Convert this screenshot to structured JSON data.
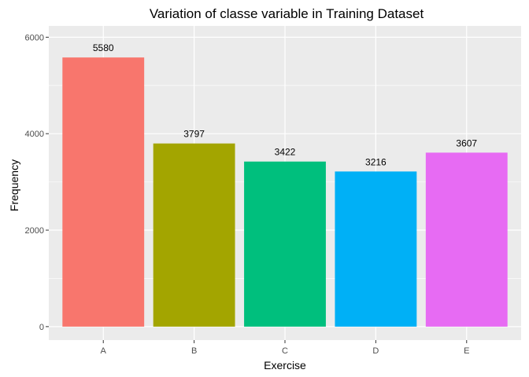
{
  "chart_data": {
    "type": "bar",
    "title": "Variation of classe variable in Training Dataset",
    "xlabel": "Exercise",
    "ylabel": "Frequency",
    "categories": [
      "A",
      "B",
      "C",
      "D",
      "E"
    ],
    "values": [
      5580,
      3797,
      3422,
      3216,
      3607
    ],
    "data_labels": [
      "5580",
      "3797",
      "3422",
      "3216",
      "3607"
    ],
    "colors": [
      "#F8766D",
      "#A3A500",
      "#00BF7D",
      "#00B0F6",
      "#E76BF3"
    ],
    "ylim": [
      -279,
      6234
    ],
    "yticks": [
      0,
      2000,
      4000,
      6000
    ],
    "ytick_labels": [
      "0",
      "2000",
      "4000",
      "6000"
    ],
    "grid": true,
    "panel_background": "#EBEBEB",
    "grid_color": "#FFFFFF",
    "legend": "none"
  }
}
